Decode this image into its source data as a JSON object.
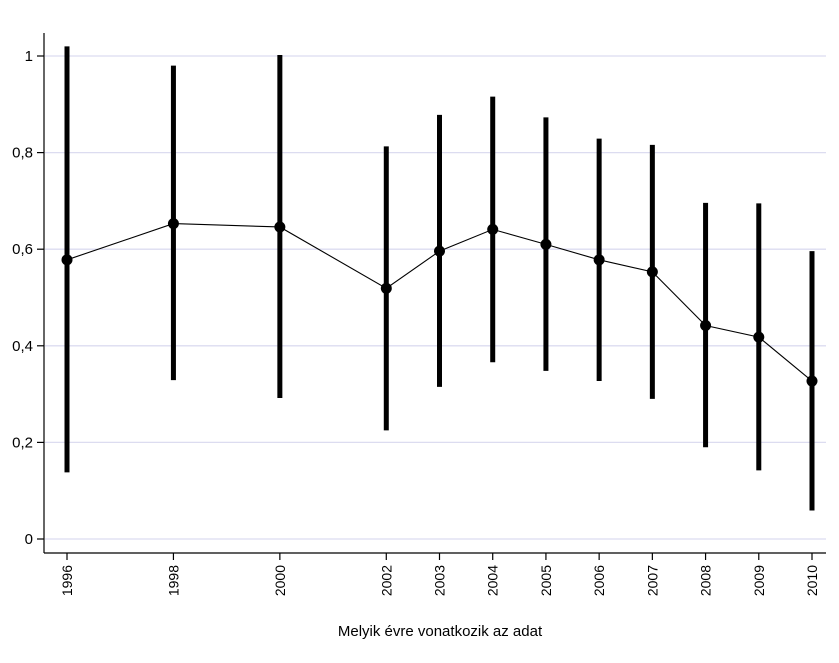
{
  "chart_data": {
    "type": "line",
    "title": "",
    "xlabel": "Melyik évre vonatkozik az adat",
    "ylabel": "",
    "xlim": [
      1996,
      2010
    ],
    "ylim": [
      0,
      1
    ],
    "grid": true,
    "colors": {
      "line": "#000000",
      "marker": "#000000",
      "errorbar": "#000000",
      "grid": "#dcdcf0"
    },
    "x": [
      1996,
      1998,
      2000,
      2002,
      2003,
      2004,
      2005,
      2006,
      2007,
      2008,
      2009,
      2010
    ],
    "x_tick_labels": [
      "1996",
      "1998",
      "2000",
      "2002",
      "2003",
      "2004",
      "2005",
      "2006",
      "2007",
      "2008",
      "2009",
      "2010"
    ],
    "y_ticks": [
      0,
      0.2,
      0.4,
      0.6,
      0.8,
      1
    ],
    "y_tick_labels": [
      "0",
      "0,2",
      "0,4",
      "0,6",
      "0,8",
      "1"
    ],
    "series": [
      {
        "values": [
          0.578,
          0.653,
          0.646,
          0.519,
          0.596,
          0.641,
          0.61,
          0.578,
          0.553,
          0.442,
          0.418,
          0.327
        ],
        "lower": [
          0.138,
          0.329,
          0.292,
          0.225,
          0.315,
          0.366,
          0.348,
          0.327,
          0.29,
          0.19,
          0.142,
          0.059
        ],
        "upper": [
          1.02,
          0.98,
          1.002,
          0.813,
          0.878,
          0.916,
          0.873,
          0.829,
          0.816,
          0.696,
          0.695,
          0.596
        ]
      }
    ]
  }
}
